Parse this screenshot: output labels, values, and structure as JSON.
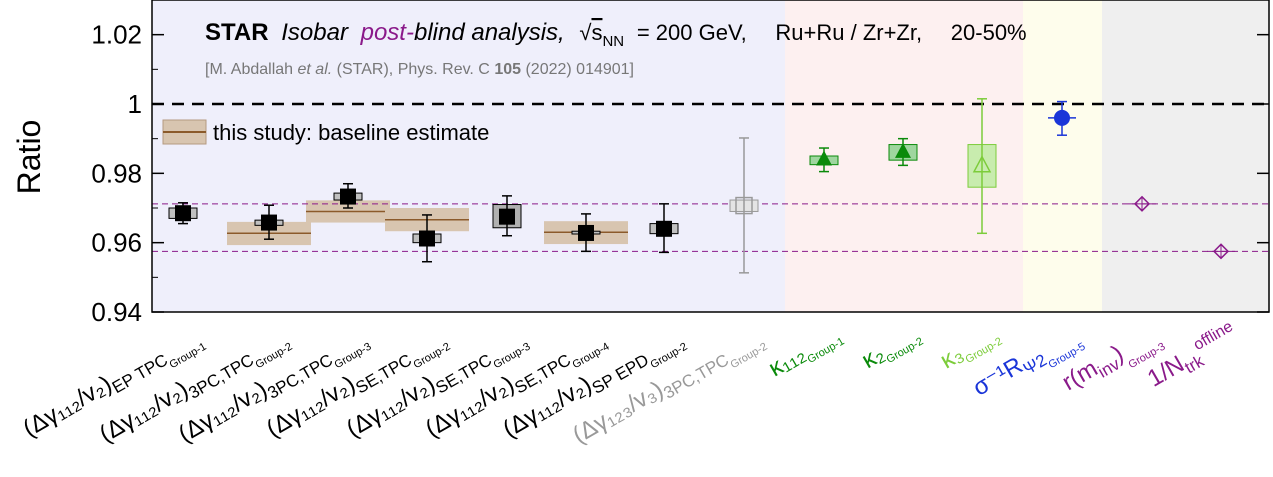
{
  "chart_data": {
    "type": "scatter",
    "ylabel": "Ratio",
    "ylim": [
      0.94,
      1.03
    ],
    "yticks": [
      {
        "value": 0.94,
        "label": "0.94"
      },
      {
        "value": 0.96,
        "label": "0.96"
      },
      {
        "value": 0.98,
        "label": "0.98"
      },
      {
        "value": 1.0,
        "label": "1"
      },
      {
        "value": 1.02,
        "label": "1.02"
      }
    ],
    "title": {
      "star": "STAR",
      "isobar": "Isobar",
      "post": "post-",
      "blind": "blind analysis,",
      "sqrt": "√",
      "s": "s",
      "nn": "NN",
      "energy": "= 200 GeV,",
      "systems": "Ru+Ru / Zr+Zr,",
      "centrality": "20-50%"
    },
    "reference": {
      "prefix": "[M. Abdallah",
      "etal": "et al.",
      "middle": "(STAR), Phys. Rev. C",
      "volume": "105",
      "suffix": "(2022) 014901]"
    },
    "legend": {
      "label": "this study: baseline estimate"
    },
    "reference_lines": {
      "unity": 1.0,
      "upper_baseline": 0.9712,
      "lower_baseline": 0.9575
    },
    "colors": {
      "gamma_region": "#efeffb",
      "kappa_region": "#fdf0f0",
      "sigma_region": "#fefdec",
      "r_region": "#efefef",
      "kappa_green": "#0a8a0a",
      "kappa3_green": "#7ccc3a",
      "sigma_blue": "#1a35d8",
      "purple": "#8a1a8a",
      "baseline_band": "#d8c5b0",
      "baseline_line": "#8b5a2b"
    },
    "points": [
      {
        "label": {
          "main": "(Δγ₁₁₂/v₂)",
          "sub1": "EP TPC",
          "sub2": "Group-1"
        },
        "color": "#000000",
        "marker": "square",
        "y": 0.9685,
        "err_lo": 0.9655,
        "err_hi": 0.9715,
        "sys_lo": 0.967,
        "sys_hi": 0.97,
        "sys_fill": "#c0c0c0",
        "baseline": null
      },
      {
        "label": {
          "main": "(Δγ₁₁₂/v₂)",
          "sub1": "3PC,TPC",
          "sub2": "Group-2"
        },
        "color": "#000000",
        "marker": "square",
        "y": 0.9658,
        "err_lo": 0.961,
        "err_hi": 0.9708,
        "sys_lo": 0.965,
        "sys_hi": 0.9665,
        "sys_fill": "#c0c0c0",
        "baseline": {
          "y": 0.9627,
          "lo": 0.9593,
          "hi": 0.966
        }
      },
      {
        "label": {
          "main": "(Δγ₁₁₂/v₂)",
          "sub1": "3PC,TPC",
          "sub2": "Group-3"
        },
        "color": "#000000",
        "marker": "square",
        "y": 0.9733,
        "err_lo": 0.97,
        "err_hi": 0.977,
        "sys_lo": 0.9723,
        "sys_hi": 0.9743,
        "sys_fill": "#c0c0c0",
        "baseline": {
          "y": 0.969,
          "lo": 0.9658,
          "hi": 0.9722
        }
      },
      {
        "label": {
          "main": "(Δγ₁₁₂/v₂)",
          "sub1": "SE,TPC",
          "sub2": "Group-2"
        },
        "color": "#000000",
        "marker": "square",
        "y": 0.9612,
        "err_lo": 0.9545,
        "err_hi": 0.968,
        "sys_lo": 0.96,
        "sys_hi": 0.9625,
        "sys_fill": "#c0c0c0",
        "baseline": {
          "y": 0.9666,
          "lo": 0.9633,
          "hi": 0.97
        }
      },
      {
        "label": {
          "main": "(Δγ₁₁₂/v₂)",
          "sub1": "SE,TPC",
          "sub2": "Group-3"
        },
        "color": "#000000",
        "marker": "square",
        "y": 0.9675,
        "err_lo": 0.962,
        "err_hi": 0.9735,
        "sys_lo": 0.9643,
        "sys_hi": 0.971,
        "sys_fill": "#b0b0b0",
        "baseline": null
      },
      {
        "label": {
          "main": "(Δγ₁₁₂/v₂)",
          "sub1": "SE,TPC",
          "sub2": "Group-4"
        },
        "color": "#000000",
        "marker": "square",
        "y": 0.9628,
        "err_lo": 0.9575,
        "err_hi": 0.9683,
        "sys_lo": 0.9625,
        "sys_hi": 0.9633,
        "sys_fill": "#c0c0c0",
        "baseline": {
          "y": 0.963,
          "lo": 0.9596,
          "hi": 0.9662
        }
      },
      {
        "label": {
          "main": "(Δγ₁₁₂/v₂)",
          "sub1": "SP EPD",
          "sub2": "Group-2"
        },
        "color": "#000000",
        "marker": "square",
        "y": 0.964,
        "err_lo": 0.9572,
        "err_hi": 0.9712,
        "sys_lo": 0.9626,
        "sys_hi": 0.9655,
        "sys_fill": "#c0c0c0",
        "baseline": null
      },
      {
        "label": {
          "main": "(Δγ₁₂₃/v₃)",
          "sub1": "3PC,TPC",
          "sub2": "Group-2"
        },
        "color": "#999999",
        "marker": "open-square",
        "y": 0.9707,
        "err_lo": 0.9513,
        "err_hi": 0.9902,
        "sys_lo": 0.969,
        "sys_hi": 0.9723,
        "sys_fill": "#e4e4e4",
        "baseline": null
      },
      {
        "label": {
          "main": "κ₁₁₂",
          "sub1": "",
          "sub2": "Group-1"
        },
        "color": "#0a8a0a",
        "marker": "triangle",
        "y": 0.984,
        "err_lo": 0.9805,
        "err_hi": 0.9873,
        "sys_lo": 0.9825,
        "sys_hi": 0.985,
        "sys_fill": "#9fd69f",
        "baseline": null
      },
      {
        "label": {
          "main": "κ₂",
          "sub1": "",
          "sub2": "Group-2"
        },
        "color": "#0a8a0a",
        "marker": "triangle",
        "y": 0.9862,
        "err_lo": 0.9823,
        "err_hi": 0.99,
        "sys_lo": 0.9838,
        "sys_hi": 0.9883,
        "sys_fill": "#9fd69f",
        "baseline": null
      },
      {
        "label": {
          "main": "κ₃",
          "sub1": "",
          "sub2": "Group-2"
        },
        "color": "#7ccc3a",
        "marker": "open-triangle",
        "y": 0.9822,
        "err_lo": 0.9627,
        "err_hi": 1.0015,
        "sys_lo": 0.976,
        "sys_hi": 0.9883,
        "sys_fill": "#c8ecae",
        "baseline": null
      },
      {
        "label": {
          "main": "σ⁻¹R",
          "sub1": "Ψ2",
          "sub2": "Group-5"
        },
        "color": "#1a35d8",
        "marker": "circle",
        "y": 0.996,
        "err_lo": 0.991,
        "err_hi": 1.0007,
        "sys_lo": null,
        "sys_hi": null,
        "sys_fill": null,
        "baseline": null
      },
      {
        "label": {
          "main": "r(m",
          "sub1": "inv",
          "sub2": "Group-3",
          "close": ")"
        },
        "color": "#8a1a8a",
        "marker": "open-diamond",
        "y": 0.9712,
        "err_lo": null,
        "err_hi": null,
        "sys_lo": null,
        "sys_hi": null,
        "sys_fill": null,
        "baseline": null
      },
      {
        "label": {
          "main": "1/N",
          "sub1": "trk",
          "sup": "offline"
        },
        "color": "#8a1a8a",
        "marker": "open-diamond",
        "y": 0.9575,
        "err_lo": null,
        "err_hi": null,
        "sys_lo": null,
        "sys_hi": null,
        "sys_fill": null,
        "baseline": null
      }
    ]
  }
}
